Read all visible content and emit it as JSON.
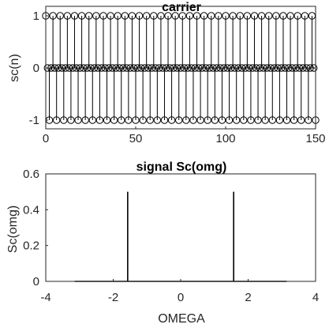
{
  "chart_data": [
    {
      "type": "stem",
      "title": "carrier",
      "xlabel": "",
      "ylabel": "sc(n)",
      "xlim": [
        0,
        150
      ],
      "ylim": [
        -1,
        1
      ],
      "x_ticks": [
        "0",
        "50",
        "100",
        "150"
      ],
      "y_ticks": [
        "-1",
        "0",
        "1"
      ],
      "grid": false,
      "series": [
        {
          "x_range": [
            0,
            150
          ],
          "values_period": [
            1,
            0,
            -1,
            0
          ],
          "marker": "circle"
        }
      ]
    },
    {
      "type": "line",
      "title": "signal Sc(omg)",
      "xlabel": "OMEGA",
      "ylabel": "Sc(omg)",
      "xlim": [
        -4,
        4
      ],
      "ylim": [
        0,
        0.6
      ],
      "x_ticks": [
        "-4",
        "-2",
        "0",
        "2",
        "4"
      ],
      "y_ticks": [
        "0",
        "0.2",
        "0.4",
        "0.6"
      ],
      "grid": false,
      "series": [
        {
          "x": [
            -3.1416,
            -1.5708,
            -1.5708,
            -1.5708,
            1.5708,
            1.5708,
            1.5708,
            3.1416
          ],
          "y": [
            0,
            0,
            0.5,
            0,
            0,
            0.5,
            0,
            0
          ]
        }
      ]
    }
  ]
}
